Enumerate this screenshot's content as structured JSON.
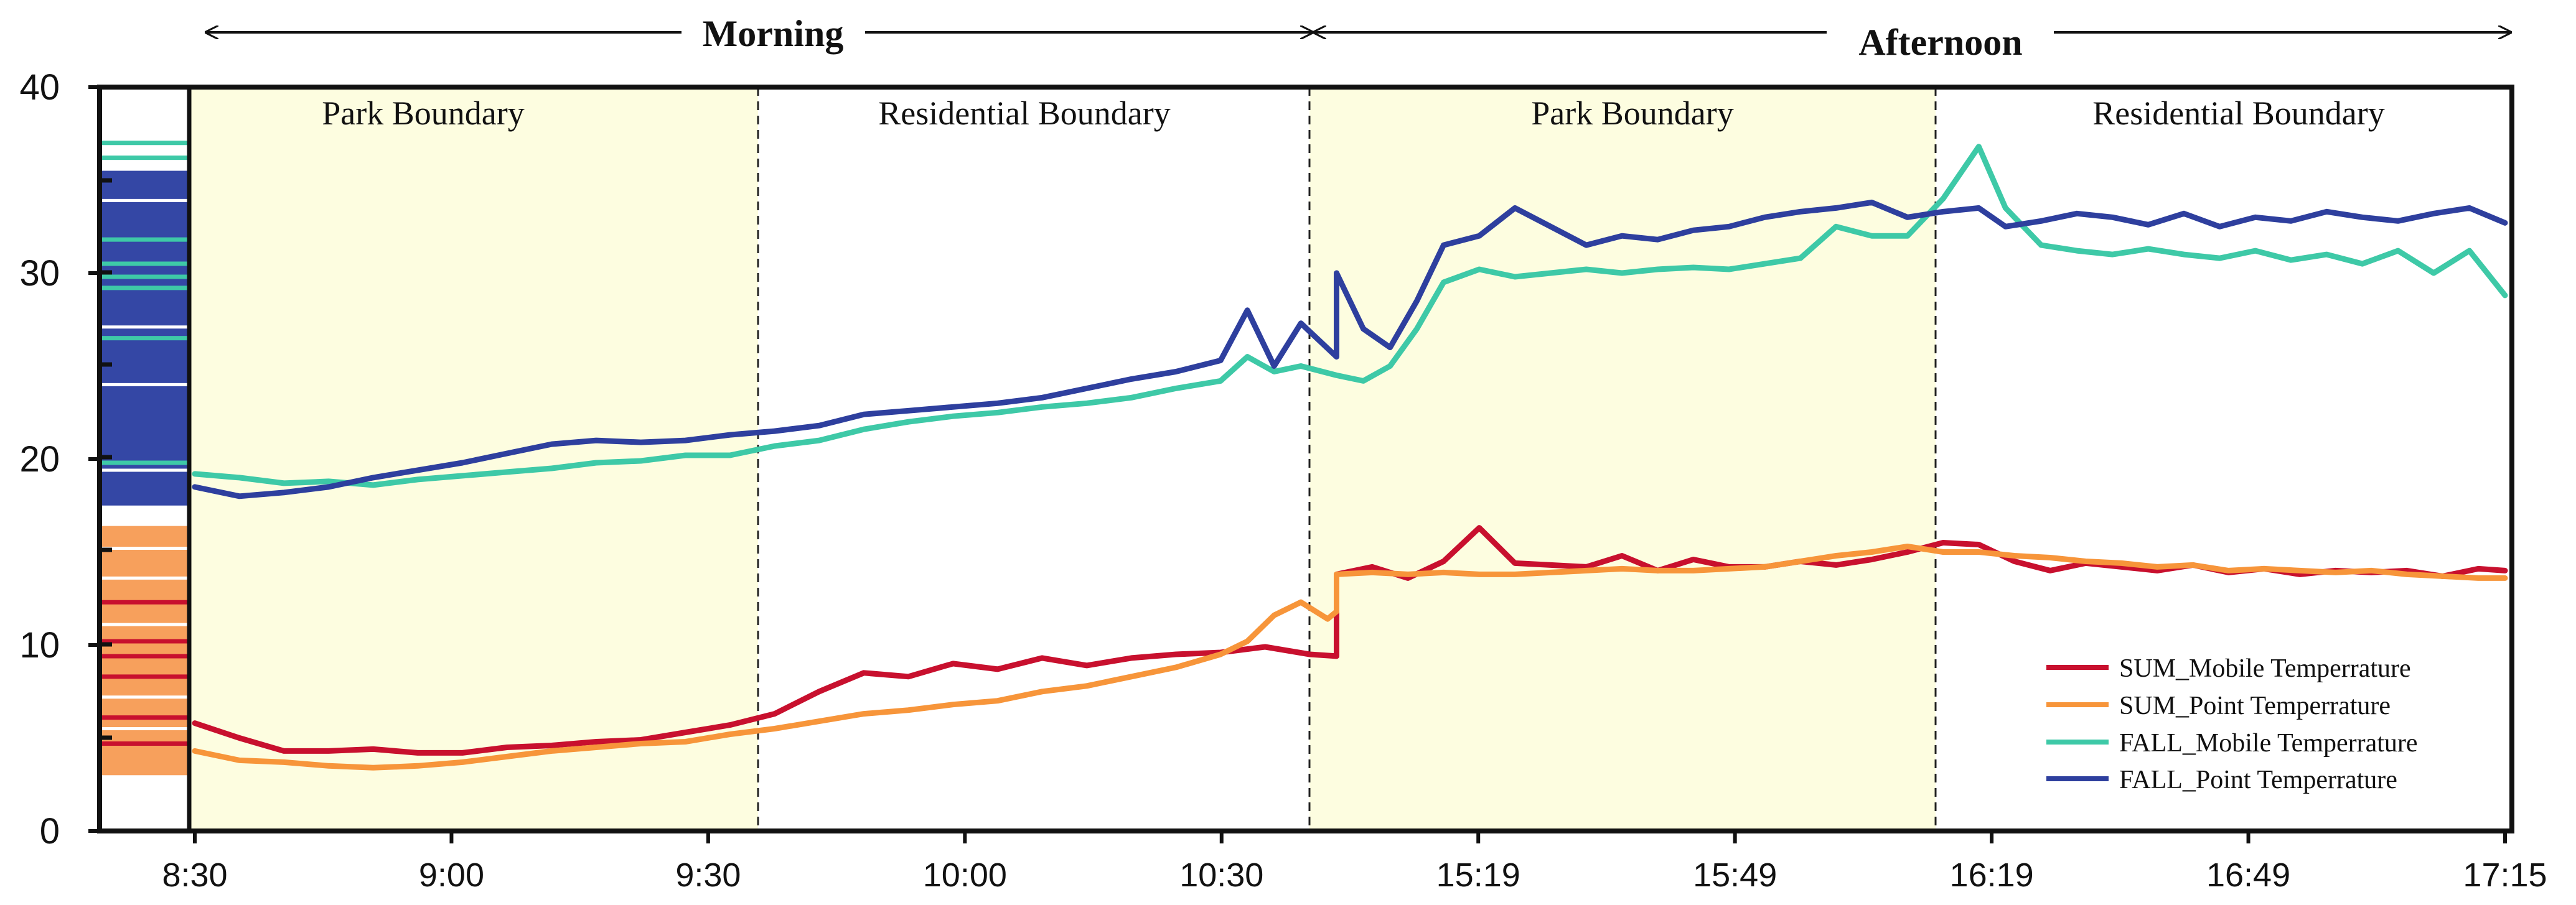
{
  "chart_data": {
    "type": "line",
    "title": "",
    "xlabel": "",
    "ylabel": "",
    "ylim": [
      0,
      40
    ],
    "yticks": [
      0,
      10,
      20,
      30,
      40
    ],
    "x_tick_labels": [
      "8:30",
      "9:00",
      "9:30",
      "10:00",
      "10:30",
      "15:19",
      "15:49",
      "16:19",
      "16:49",
      "17:15"
    ],
    "periods": [
      {
        "label": "Morning",
        "start": "8:30",
        "end": "10:36"
      },
      {
        "label": "Afternoon",
        "start": "15:06",
        "end": "17:15"
      }
    ],
    "segments": [
      {
        "label": "Park Boundary",
        "shaded": true
      },
      {
        "label": "Residential Boundary",
        "shaded": false
      },
      {
        "label": "Park Boundary",
        "shaded": true
      },
      {
        "label": "Residential Boundary",
        "shaded": false
      }
    ],
    "colors": {
      "shade": "#fdfde0",
      "sum_mobile": "#c8102e",
      "sum_point": "#f7953a",
      "fall_mobile": "#3ec9a7",
      "fall_point": "#2e3f9e",
      "strip_blue": "#3447a5",
      "strip_orange": "#f7a05c"
    },
    "series": [
      {
        "name": "SUM_Mobile Temperrature",
        "color_key": "sum_mobile",
        "data": [
          [
            0,
            5.8
          ],
          [
            5,
            5.0
          ],
          [
            10,
            4.3
          ],
          [
            15,
            4.3
          ],
          [
            20,
            4.4
          ],
          [
            25,
            4.2
          ],
          [
            30,
            4.2
          ],
          [
            35,
            4.5
          ],
          [
            40,
            4.6
          ],
          [
            45,
            4.8
          ],
          [
            50,
            4.9
          ],
          [
            55,
            5.3
          ],
          [
            60,
            5.7
          ],
          [
            65,
            6.3
          ],
          [
            70,
            7.5
          ],
          [
            75,
            8.5
          ],
          [
            80,
            8.3
          ],
          [
            85,
            9.0
          ],
          [
            90,
            8.7
          ],
          [
            95,
            9.3
          ],
          [
            100,
            8.9
          ],
          [
            105,
            9.3
          ],
          [
            110,
            9.5
          ],
          [
            115,
            9.6
          ],
          [
            120,
            9.9
          ],
          [
            125,
            9.5
          ],
          [
            128,
            9.4
          ],
          [
            128,
            13.8
          ],
          [
            132,
            14.2
          ],
          [
            136,
            13.6
          ],
          [
            140,
            14.5
          ],
          [
            144,
            16.3
          ],
          [
            148,
            14.4
          ],
          [
            152,
            14.3
          ],
          [
            156,
            14.2
          ],
          [
            160,
            14.8
          ],
          [
            164,
            14.0
          ],
          [
            168,
            14.6
          ],
          [
            172,
            14.2
          ],
          [
            176,
            14.2
          ],
          [
            180,
            14.5
          ],
          [
            184,
            14.3
          ],
          [
            188,
            14.6
          ],
          [
            192,
            15.0
          ],
          [
            196,
            15.5
          ],
          [
            200,
            15.4
          ],
          [
            204,
            14.5
          ],
          [
            208,
            14.0
          ],
          [
            212,
            14.4
          ],
          [
            216,
            14.2
          ],
          [
            220,
            14.0
          ],
          [
            224,
            14.3
          ],
          [
            228,
            13.9
          ],
          [
            232,
            14.1
          ],
          [
            236,
            13.8
          ],
          [
            240,
            14.0
          ],
          [
            244,
            13.9
          ],
          [
            248,
            14.0
          ],
          [
            252,
            13.7
          ],
          [
            256,
            14.1
          ],
          [
            259,
            14.0
          ]
        ]
      },
      {
        "name": "SUM_Point Temperrature",
        "color_key": "sum_point",
        "data": [
          [
            0,
            4.3
          ],
          [
            5,
            3.8
          ],
          [
            10,
            3.7
          ],
          [
            15,
            3.5
          ],
          [
            20,
            3.4
          ],
          [
            25,
            3.5
          ],
          [
            30,
            3.7
          ],
          [
            35,
            4.0
          ],
          [
            40,
            4.3
          ],
          [
            45,
            4.5
          ],
          [
            50,
            4.7
          ],
          [
            55,
            4.8
          ],
          [
            60,
            5.2
          ],
          [
            65,
            5.5
          ],
          [
            70,
            5.9
          ],
          [
            75,
            6.3
          ],
          [
            80,
            6.5
          ],
          [
            85,
            6.8
          ],
          [
            90,
            7.0
          ],
          [
            95,
            7.5
          ],
          [
            100,
            7.8
          ],
          [
            105,
            8.3
          ],
          [
            110,
            8.8
          ],
          [
            115,
            9.5
          ],
          [
            118,
            10.2
          ],
          [
            121,
            11.6
          ],
          [
            124,
            12.3
          ],
          [
            127,
            11.4
          ],
          [
            128,
            11.8
          ],
          [
            128,
            13.8
          ],
          [
            132,
            13.9
          ],
          [
            136,
            13.8
          ],
          [
            140,
            13.9
          ],
          [
            144,
            13.8
          ],
          [
            148,
            13.8
          ],
          [
            152,
            13.9
          ],
          [
            156,
            14.0
          ],
          [
            160,
            14.1
          ],
          [
            164,
            14.0
          ],
          [
            168,
            14.0
          ],
          [
            172,
            14.1
          ],
          [
            176,
            14.2
          ],
          [
            180,
            14.5
          ],
          [
            184,
            14.8
          ],
          [
            188,
            15.0
          ],
          [
            192,
            15.3
          ],
          [
            196,
            15.0
          ],
          [
            200,
            15.0
          ],
          [
            204,
            14.8
          ],
          [
            208,
            14.7
          ],
          [
            212,
            14.5
          ],
          [
            216,
            14.4
          ],
          [
            220,
            14.2
          ],
          [
            224,
            14.3
          ],
          [
            228,
            14.0
          ],
          [
            232,
            14.1
          ],
          [
            236,
            14.0
          ],
          [
            240,
            13.9
          ],
          [
            244,
            14.0
          ],
          [
            248,
            13.8
          ],
          [
            252,
            13.7
          ],
          [
            256,
            13.6
          ],
          [
            259,
            13.6
          ]
        ]
      },
      {
        "name": "FALL_Mobile Temperrature",
        "color_key": "fall_mobile",
        "data": [
          [
            0,
            19.2
          ],
          [
            5,
            19.0
          ],
          [
            10,
            18.7
          ],
          [
            15,
            18.8
          ],
          [
            20,
            18.6
          ],
          [
            25,
            18.9
          ],
          [
            30,
            19.1
          ],
          [
            35,
            19.3
          ],
          [
            40,
            19.5
          ],
          [
            45,
            19.8
          ],
          [
            50,
            19.9
          ],
          [
            55,
            20.2
          ],
          [
            60,
            20.2
          ],
          [
            65,
            20.7
          ],
          [
            70,
            21.0
          ],
          [
            75,
            21.6
          ],
          [
            80,
            22.0
          ],
          [
            85,
            22.3
          ],
          [
            90,
            22.5
          ],
          [
            95,
            22.8
          ],
          [
            100,
            23.0
          ],
          [
            105,
            23.3
          ],
          [
            110,
            23.8
          ],
          [
            115,
            24.2
          ],
          [
            118,
            25.5
          ],
          [
            121,
            24.7
          ],
          [
            124,
            25.0
          ],
          [
            128,
            24.5
          ],
          [
            128,
            24.5
          ],
          [
            131,
            24.2
          ],
          [
            134,
            25.0
          ],
          [
            137,
            27.0
          ],
          [
            140,
            29.5
          ],
          [
            144,
            30.2
          ],
          [
            148,
            29.8
          ],
          [
            152,
            30.0
          ],
          [
            156,
            30.2
          ],
          [
            160,
            30.0
          ],
          [
            164,
            30.2
          ],
          [
            168,
            30.3
          ],
          [
            172,
            30.2
          ],
          [
            176,
            30.5
          ],
          [
            180,
            30.8
          ],
          [
            184,
            32.5
          ],
          [
            188,
            32.0
          ],
          [
            192,
            32.0
          ],
          [
            196,
            34.0
          ],
          [
            200,
            36.8
          ],
          [
            203,
            33.5
          ],
          [
            207,
            31.5
          ],
          [
            211,
            31.2
          ],
          [
            215,
            31.0
          ],
          [
            219,
            31.3
          ],
          [
            223,
            31.0
          ],
          [
            227,
            30.8
          ],
          [
            231,
            31.2
          ],
          [
            235,
            30.7
          ],
          [
            239,
            31.0
          ],
          [
            243,
            30.5
          ],
          [
            247,
            31.2
          ],
          [
            251,
            30.0
          ],
          [
            255,
            31.2
          ],
          [
            259,
            28.8
          ]
        ]
      },
      {
        "name": "FALL_Point Temperrature",
        "color_key": "fall_point",
        "data": [
          [
            0,
            18.5
          ],
          [
            5,
            18.0
          ],
          [
            10,
            18.2
          ],
          [
            15,
            18.5
          ],
          [
            20,
            19.0
          ],
          [
            25,
            19.4
          ],
          [
            30,
            19.8
          ],
          [
            35,
            20.3
          ],
          [
            40,
            20.8
          ],
          [
            45,
            21.0
          ],
          [
            50,
            20.9
          ],
          [
            55,
            21.0
          ],
          [
            60,
            21.3
          ],
          [
            65,
            21.5
          ],
          [
            70,
            21.8
          ],
          [
            75,
            22.4
          ],
          [
            80,
            22.6
          ],
          [
            85,
            22.8
          ],
          [
            90,
            23.0
          ],
          [
            95,
            23.3
          ],
          [
            100,
            23.8
          ],
          [
            105,
            24.3
          ],
          [
            110,
            24.7
          ],
          [
            115,
            25.3
          ],
          [
            118,
            28.0
          ],
          [
            121,
            25.0
          ],
          [
            124,
            27.3
          ],
          [
            128,
            25.5
          ],
          [
            128,
            30.0
          ],
          [
            131,
            27.0
          ],
          [
            134,
            26.0
          ],
          [
            137,
            28.5
          ],
          [
            140,
            31.5
          ],
          [
            144,
            32.0
          ],
          [
            148,
            33.5
          ],
          [
            152,
            32.5
          ],
          [
            156,
            31.5
          ],
          [
            160,
            32.0
          ],
          [
            164,
            31.8
          ],
          [
            168,
            32.3
          ],
          [
            172,
            32.5
          ],
          [
            176,
            33.0
          ],
          [
            180,
            33.3
          ],
          [
            184,
            33.5
          ],
          [
            188,
            33.8
          ],
          [
            192,
            33.0
          ],
          [
            196,
            33.3
          ],
          [
            200,
            33.5
          ],
          [
            203,
            32.5
          ],
          [
            207,
            32.8
          ],
          [
            211,
            33.2
          ],
          [
            215,
            33.0
          ],
          [
            219,
            32.6
          ],
          [
            223,
            33.2
          ],
          [
            227,
            32.5
          ],
          [
            231,
            33.0
          ],
          [
            235,
            32.8
          ],
          [
            239,
            33.3
          ],
          [
            243,
            33.0
          ],
          [
            247,
            32.8
          ],
          [
            251,
            33.2
          ],
          [
            255,
            33.5
          ],
          [
            259,
            32.7
          ]
        ]
      }
    ],
    "legend": {
      "position": "bottom-right",
      "entries": [
        {
          "label": "SUM_Mobile Temperrature",
          "color_key": "sum_mobile"
        },
        {
          "label": "SUM_Point Temperrature",
          "color_key": "sum_point"
        },
        {
          "label": "FALL_Mobile Temperrature",
          "color_key": "fall_mobile"
        },
        {
          "label": "FALL_Point Temperrature",
          "color_key": "fall_point"
        }
      ]
    },
    "strip_bands": [
      {
        "from": 17.5,
        "to": 35.5,
        "color_key": "strip_blue"
      },
      {
        "from": 3.0,
        "to": 16.4,
        "color_key": "strip_orange"
      }
    ],
    "strip_lines": [
      {
        "value": 37.0,
        "color_key": "fall_mobile"
      },
      {
        "value": 36.2,
        "color_key": "fall_mobile"
      },
      {
        "value": 31.8,
        "color_key": "fall_mobile"
      },
      {
        "value": 30.5,
        "color_key": "fall_mobile"
      },
      {
        "value": 29.8,
        "color_key": "fall_mobile"
      },
      {
        "value": 29.2,
        "color_key": "fall_mobile"
      },
      {
        "value": 26.5,
        "color_key": "fall_mobile"
      },
      {
        "value": 19.8,
        "color_key": "fall_mobile"
      },
      {
        "value": 12.3,
        "color_key": "sum_mobile"
      },
      {
        "value": 10.2,
        "color_key": "sum_mobile"
      },
      {
        "value": 9.4,
        "color_key": "sum_mobile"
      },
      {
        "value": 8.3,
        "color_key": "sum_mobile"
      },
      {
        "value": 6.1,
        "color_key": "sum_mobile"
      },
      {
        "value": 4.7,
        "color_key": "sum_mobile"
      }
    ]
  }
}
